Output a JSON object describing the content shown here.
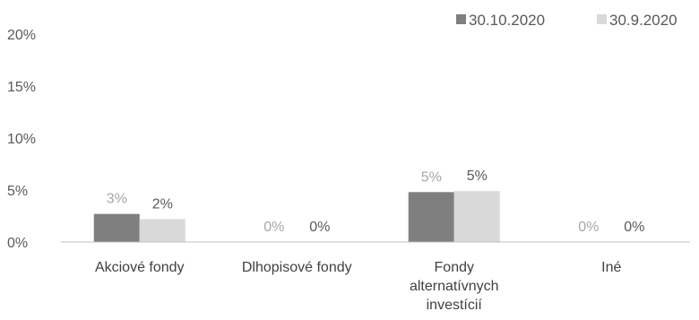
{
  "chart_data": {
    "type": "bar",
    "categories": [
      "Akciové fondy",
      "Dlhopisové fondy",
      "Fondy alternatívnych investícií",
      "Iné"
    ],
    "category_label_lines": [
      [
        "Akciové fondy"
      ],
      [
        "Dlhopisové fondy"
      ],
      [
        "Fondy",
        "alternatívnych",
        "investícií"
      ],
      [
        "Iné"
      ]
    ],
    "series": [
      {
        "name": "30.10.2020",
        "values": [
          2.7,
          0,
          4.8,
          0
        ],
        "labels": [
          "3%",
          "0%",
          "5%",
          "0%"
        ],
        "color": "#7f7f7f",
        "label_color": "#a6a6a6"
      },
      {
        "name": "30.9.2020",
        "values": [
          2.2,
          0,
          4.9,
          0
        ],
        "labels": [
          "2%",
          "0%",
          "5%",
          "0%"
        ],
        "color": "#d9d9d9",
        "label_color": "#595959"
      }
    ],
    "y_ticks": [
      "0%",
      "5%",
      "10%",
      "15%",
      "20%"
    ],
    "ylim": [
      0,
      20
    ],
    "grid": false,
    "legend_position": "top-right",
    "title": "",
    "xlabel": "",
    "ylabel": ""
  }
}
